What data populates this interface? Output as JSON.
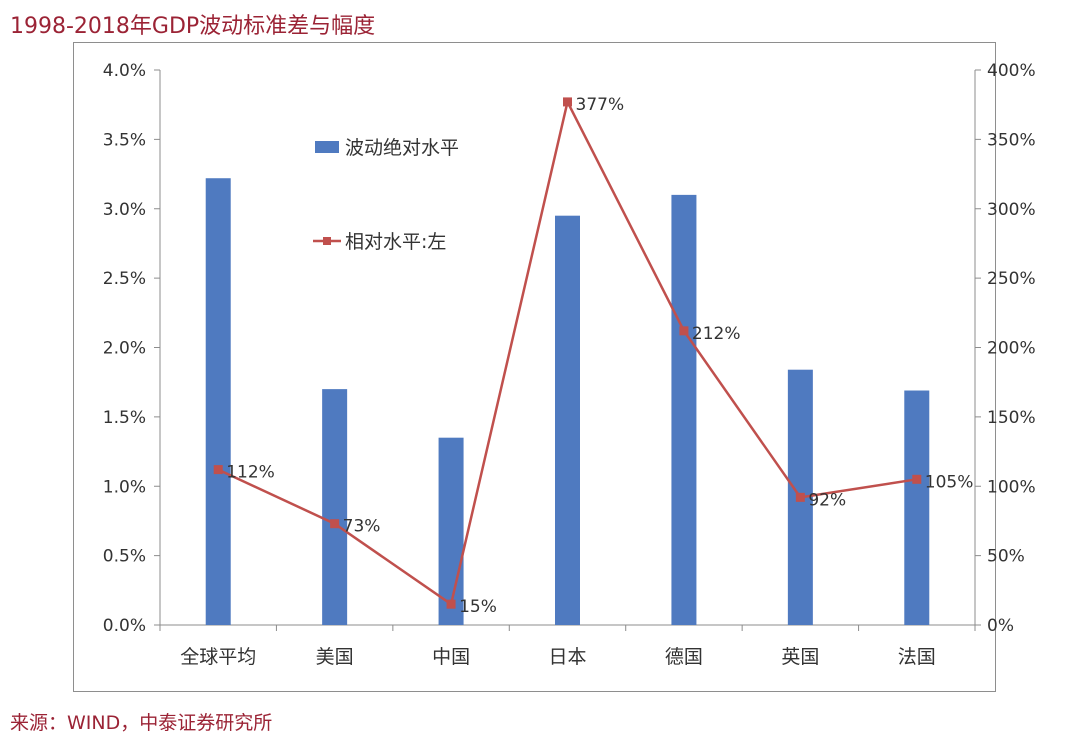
{
  "title": "1998-2018年GDP波动标准差与幅度",
  "source": "来源：WIND，中泰证券研究所",
  "chart_data": {
    "type": "bar+line",
    "categories": [
      "全球平均",
      "美国",
      "中国",
      "日本",
      "德国",
      "英国",
      "法国"
    ],
    "series": [
      {
        "name": "波动绝对水平",
        "type": "bar",
        "axis": "left",
        "color": "#4f7ac0",
        "values": [
          3.22,
          1.7,
          1.35,
          2.95,
          3.1,
          1.84,
          1.69
        ]
      },
      {
        "name": "相对水平:左",
        "type": "line",
        "axis": "right",
        "color": "#c0504d",
        "values": [
          112,
          73,
          15,
          377,
          212,
          92,
          105
        ],
        "labels": [
          "112%",
          "73%",
          "15%",
          "377%",
          "212%",
          "92%",
          "105%"
        ]
      }
    ],
    "left_axis": {
      "ylim": [
        0,
        4.0
      ],
      "ticks": [
        "0.0%",
        "0.5%",
        "1.0%",
        "1.5%",
        "2.0%",
        "2.5%",
        "3.0%",
        "3.5%",
        "4.0%"
      ]
    },
    "right_axis": {
      "ylim": [
        0,
        400
      ],
      "ticks": [
        "0%",
        "50%",
        "100%",
        "150%",
        "200%",
        "250%",
        "300%",
        "350%",
        "400%"
      ]
    },
    "grid": false,
    "legend": "upper-left-inside"
  }
}
